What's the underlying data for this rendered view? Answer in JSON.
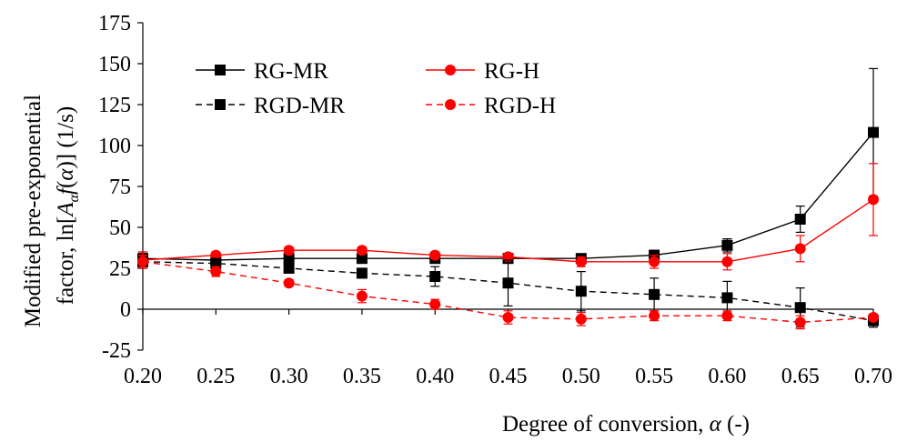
{
  "chart_data": {
    "type": "line",
    "xlabel": "Degree of conversion, α (-)",
    "ylabel_line1": "Modified pre-exponential",
    "ylabel_line2": "factor, ln[Aαf(α)] (1/s)",
    "x": [
      0.2,
      0.25,
      0.3,
      0.35,
      0.4,
      0.45,
      0.5,
      0.55,
      0.6,
      0.65,
      0.7
    ],
    "x_tick_labels": [
      "0.20",
      "0.25",
      "0.30",
      "0.35",
      "0.40",
      "0.45",
      "0.50",
      "0.55",
      "0.60",
      "0.65",
      "0.70"
    ],
    "y_ticks": [
      -25,
      0,
      25,
      50,
      75,
      100,
      125,
      150,
      175
    ],
    "ylim": [
      -25,
      175
    ],
    "grid": false,
    "legend_position": "top-left",
    "series": [
      {
        "name": "RG-MR",
        "color": "#000000",
        "marker": "square",
        "dash": "solid",
        "values": [
          31,
          30,
          31,
          31,
          31,
          31,
          31,
          33,
          39,
          55,
          108
        ],
        "errors": [
          4,
          2,
          2,
          2,
          2,
          2,
          2,
          3,
          4,
          8,
          39
        ]
      },
      {
        "name": "RG-H",
        "color": "#ff0000",
        "marker": "circle",
        "dash": "solid",
        "values": [
          30,
          33,
          36,
          36,
          33,
          32,
          29,
          29,
          29,
          37,
          67
        ],
        "errors": [
          5,
          2,
          2,
          2,
          2,
          2,
          3,
          4,
          5,
          8,
          22
        ]
      },
      {
        "name": "RGD-MR",
        "color": "#000000",
        "marker": "square",
        "dash": "dashed",
        "values": [
          29,
          28,
          25,
          22,
          20,
          16,
          11,
          9,
          7,
          1,
          -7
        ],
        "errors": [
          4,
          3,
          3,
          3,
          6,
          14,
          12,
          10,
          10,
          12,
          4
        ]
      },
      {
        "name": "RGD-H",
        "color": "#ff0000",
        "marker": "circle",
        "dash": "dashed",
        "values": [
          29,
          23,
          16,
          8,
          3,
          -5,
          -6,
          -4,
          -4,
          -8,
          -5
        ],
        "errors": [
          4,
          3,
          2,
          4,
          3,
          4,
          4,
          3,
          3,
          4,
          2
        ]
      }
    ]
  }
}
